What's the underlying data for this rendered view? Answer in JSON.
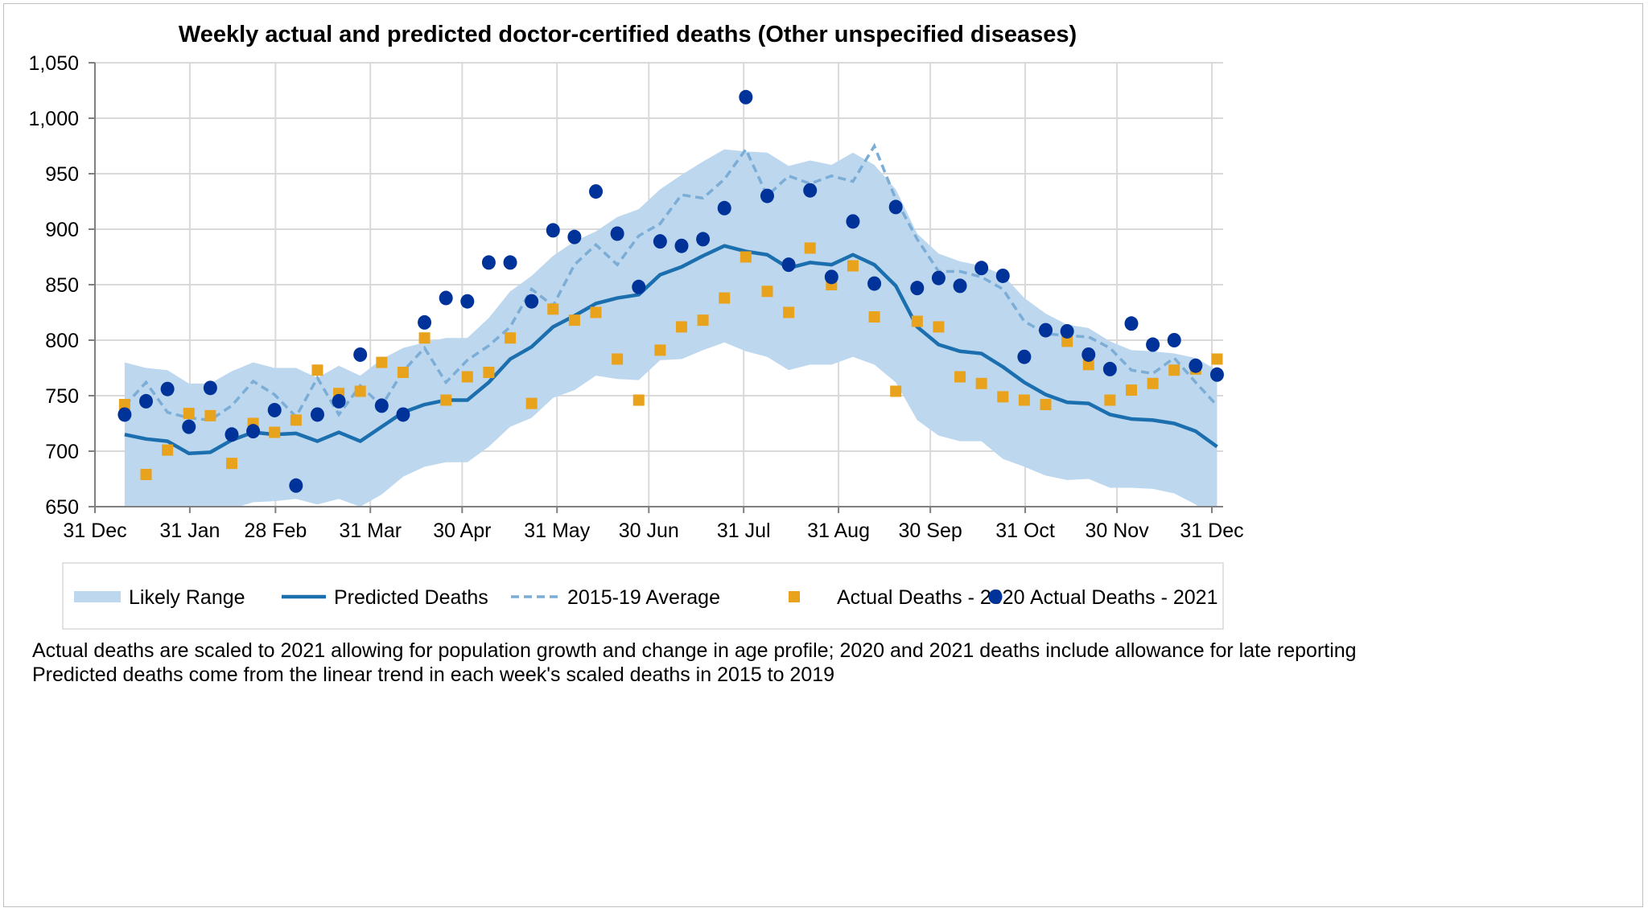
{
  "chart_data": {
    "type": "line",
    "title": "Weekly actual and predicted doctor-certified deaths (Other unspecified diseases)",
    "xlabel": "",
    "ylabel": "",
    "ylim": [
      650,
      1050
    ],
    "yticks": [
      650,
      700,
      750,
      800,
      850,
      900,
      950,
      1000,
      1050
    ],
    "ytick_labels": [
      "650",
      "700",
      "750",
      "800",
      "850",
      "900",
      "950",
      "1,000",
      "1,050"
    ],
    "xticks": [
      {
        "label": "31 Dec",
        "day": 0
      },
      {
        "label": "31 Jan",
        "day": 31
      },
      {
        "label": "28 Feb",
        "day": 59
      },
      {
        "label": "31 Mar",
        "day": 90
      },
      {
        "label": "30 Apr",
        "day": 120
      },
      {
        "label": "31 May",
        "day": 151
      },
      {
        "label": "30 Jun",
        "day": 181
      },
      {
        "label": "31 Jul",
        "day": 212
      },
      {
        "label": "31 Aug",
        "day": 243
      },
      {
        "label": "30 Sep",
        "day": 273
      },
      {
        "label": "31 Oct",
        "day": 304
      },
      {
        "label": "30 Nov",
        "day": 334
      },
      {
        "label": "31 Dec",
        "day": 365
      }
    ],
    "xlim_days": [
      0,
      365
    ],
    "first_week_day": 9.7,
    "week_step_days": 7,
    "grid": true,
    "legend_placement": "bottom",
    "series": [
      {
        "name": "Likely Range",
        "kind": "band",
        "color": "#bdd7ee",
        "upper": [
          780,
          775,
          773,
          761,
          761,
          772,
          780,
          775,
          775,
          766,
          777,
          768,
          783,
          793,
          798,
          802,
          802,
          820,
          844,
          858,
          876,
          889,
          898,
          911,
          918,
          936,
          949,
          961,
          972,
          970,
          969,
          957,
          962,
          958,
          969,
          958,
          936,
          896,
          878,
          871,
          867,
          859,
          838,
          824,
          814,
          811,
          799,
          791,
          790,
          788,
          784,
          773
        ],
        "lower": [
          650,
          647,
          645,
          635,
          637,
          648,
          654,
          655,
          657,
          652,
          657,
          650,
          661,
          677,
          686,
          690,
          690,
          704,
          722,
          730,
          748,
          755,
          768,
          765,
          764,
          782,
          783,
          791,
          798,
          790,
          785,
          773,
          778,
          778,
          785,
          778,
          762,
          728,
          714,
          709,
          709,
          693,
          686,
          678,
          674,
          675,
          667,
          667,
          666,
          662,
          652,
          635
        ]
      },
      {
        "name": "Predicted Deaths",
        "kind": "line",
        "color": "#1b6fae",
        "values": [
          715,
          711,
          709,
          698,
          699,
          710,
          717,
          715,
          716,
          709,
          717,
          709,
          722,
          735,
          742,
          746,
          746,
          762,
          783,
          794,
          812,
          822,
          833,
          838,
          841,
          859,
          866,
          876,
          885,
          880,
          877,
          865,
          870,
          868,
          877,
          868,
          849,
          812,
          796,
          790,
          788,
          776,
          762,
          751,
          744,
          743,
          733,
          729,
          728,
          725,
          718,
          704
        ]
      },
      {
        "name": "2015-19 Average",
        "kind": "dashed",
        "color": "#7badd6",
        "values": [
          741,
          762,
          735,
          730,
          728,
          741,
          763,
          751,
          731,
          766,
          733,
          759,
          741,
          772,
          793,
          762,
          782,
          795,
          812,
          846,
          831,
          868,
          886,
          868,
          894,
          905,
          931,
          928,
          945,
          972,
          930,
          948,
          941,
          948,
          943,
          975,
          927,
          891,
          862,
          862,
          857,
          846,
          817,
          806,
          804,
          803,
          793,
          773,
          770,
          784,
          762,
          741
        ]
      },
      {
        "name": "Actual Deaths - 2020",
        "kind": "square",
        "color": "#e9a21c",
        "values": [
          742,
          679,
          701,
          734,
          732,
          689,
          725,
          717,
          728,
          773,
          752,
          754,
          780,
          771,
          802,
          746,
          767,
          771,
          802,
          743,
          828,
          818,
          825,
          783,
          746,
          791,
          812,
          818,
          838,
          875,
          844,
          825,
          883,
          850,
          867,
          821,
          754,
          817,
          812,
          767,
          761,
          749,
          746,
          742,
          799,
          778,
          746,
          755,
          761,
          773,
          774,
          783
        ]
      },
      {
        "name": "Actual Deaths - 2021",
        "kind": "dot",
        "color": "#003399",
        "values": [
          733,
          745,
          756,
          722,
          757,
          715,
          718,
          737,
          669,
          733,
          745,
          787,
          741,
          733,
          816,
          838,
          835,
          870,
          870,
          835,
          899,
          893,
          934,
          896,
          848,
          889,
          885,
          891,
          919,
          1019,
          930,
          868,
          935,
          857,
          907,
          851,
          920,
          847,
          856,
          849,
          865,
          858,
          785,
          809,
          808,
          787,
          774,
          815,
          796,
          800,
          777,
          769
        ]
      }
    ]
  },
  "footnotes": [
    "Actual deaths are scaled to 2021 allowing for population growth and change in age profile; 2020 and 2021 deaths include allowance for late reporting",
    "Predicted deaths come from the linear trend in each week's scaled deaths in 2015 to 2019"
  ]
}
